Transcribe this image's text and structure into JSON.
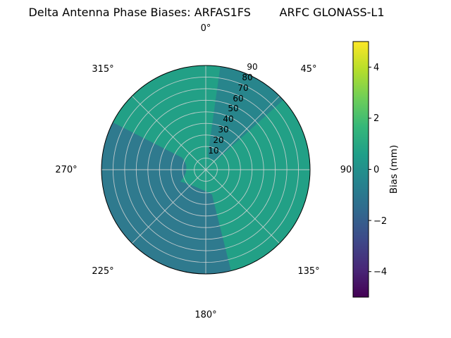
{
  "chart_data": {
    "type": "heatmap",
    "projection": "polar",
    "title": "Delta Antenna Phase Biases: ARFAS1FS        ARFC GLONASS-L1",
    "angular_tick_labels": [
      "0°",
      "45°",
      "90",
      "135°",
      "180°",
      "225°",
      "270°",
      "315°"
    ],
    "radial_tick_labels": [
      "10",
      "20",
      "30",
      "40",
      "50",
      "60",
      "70",
      "80",
      "90"
    ],
    "radial_range": [
      0,
      90
    ],
    "grid": true,
    "colorbar": {
      "label": "Bias (mm)",
      "tick_labels_top_to_bottom": [
        "4",
        "2",
        "0",
        "−2",
        "−4"
      ],
      "range_mm": [
        -5,
        5
      ],
      "colormap": "viridis",
      "gradient_stops_low_to_high": [
        "#440154",
        "#482878",
        "#3e4989",
        "#31688e",
        "#26828e",
        "#1f9e89",
        "#35b779",
        "#6ece58",
        "#b5de2b",
        "#fde725"
      ]
    },
    "regions": [
      {
        "name": "overall-background",
        "description": "dominant green-teal area covering most of the sky plot",
        "approx_bias_mm": 0.7,
        "color": "#22a086"
      },
      {
        "name": "upper-right-sector",
        "description": "darker teal wedge between about 8° and 48° azimuth, from near center to outer edge",
        "azimuth_range_deg": [
          8,
          48
        ],
        "radial_range": [
          10,
          90
        ],
        "approx_bias_mm": -0.3,
        "color": "#28858c"
      },
      {
        "name": "lower-left-region",
        "description": "large darker blue-teal blob spanning roughly 166°–297° azimuth out to the edge",
        "azimuth_range_deg": [
          166,
          297
        ],
        "radial_range": [
          20,
          90
        ],
        "approx_bias_mm": -1.0,
        "color": "#2f7a8e"
      }
    ]
  }
}
